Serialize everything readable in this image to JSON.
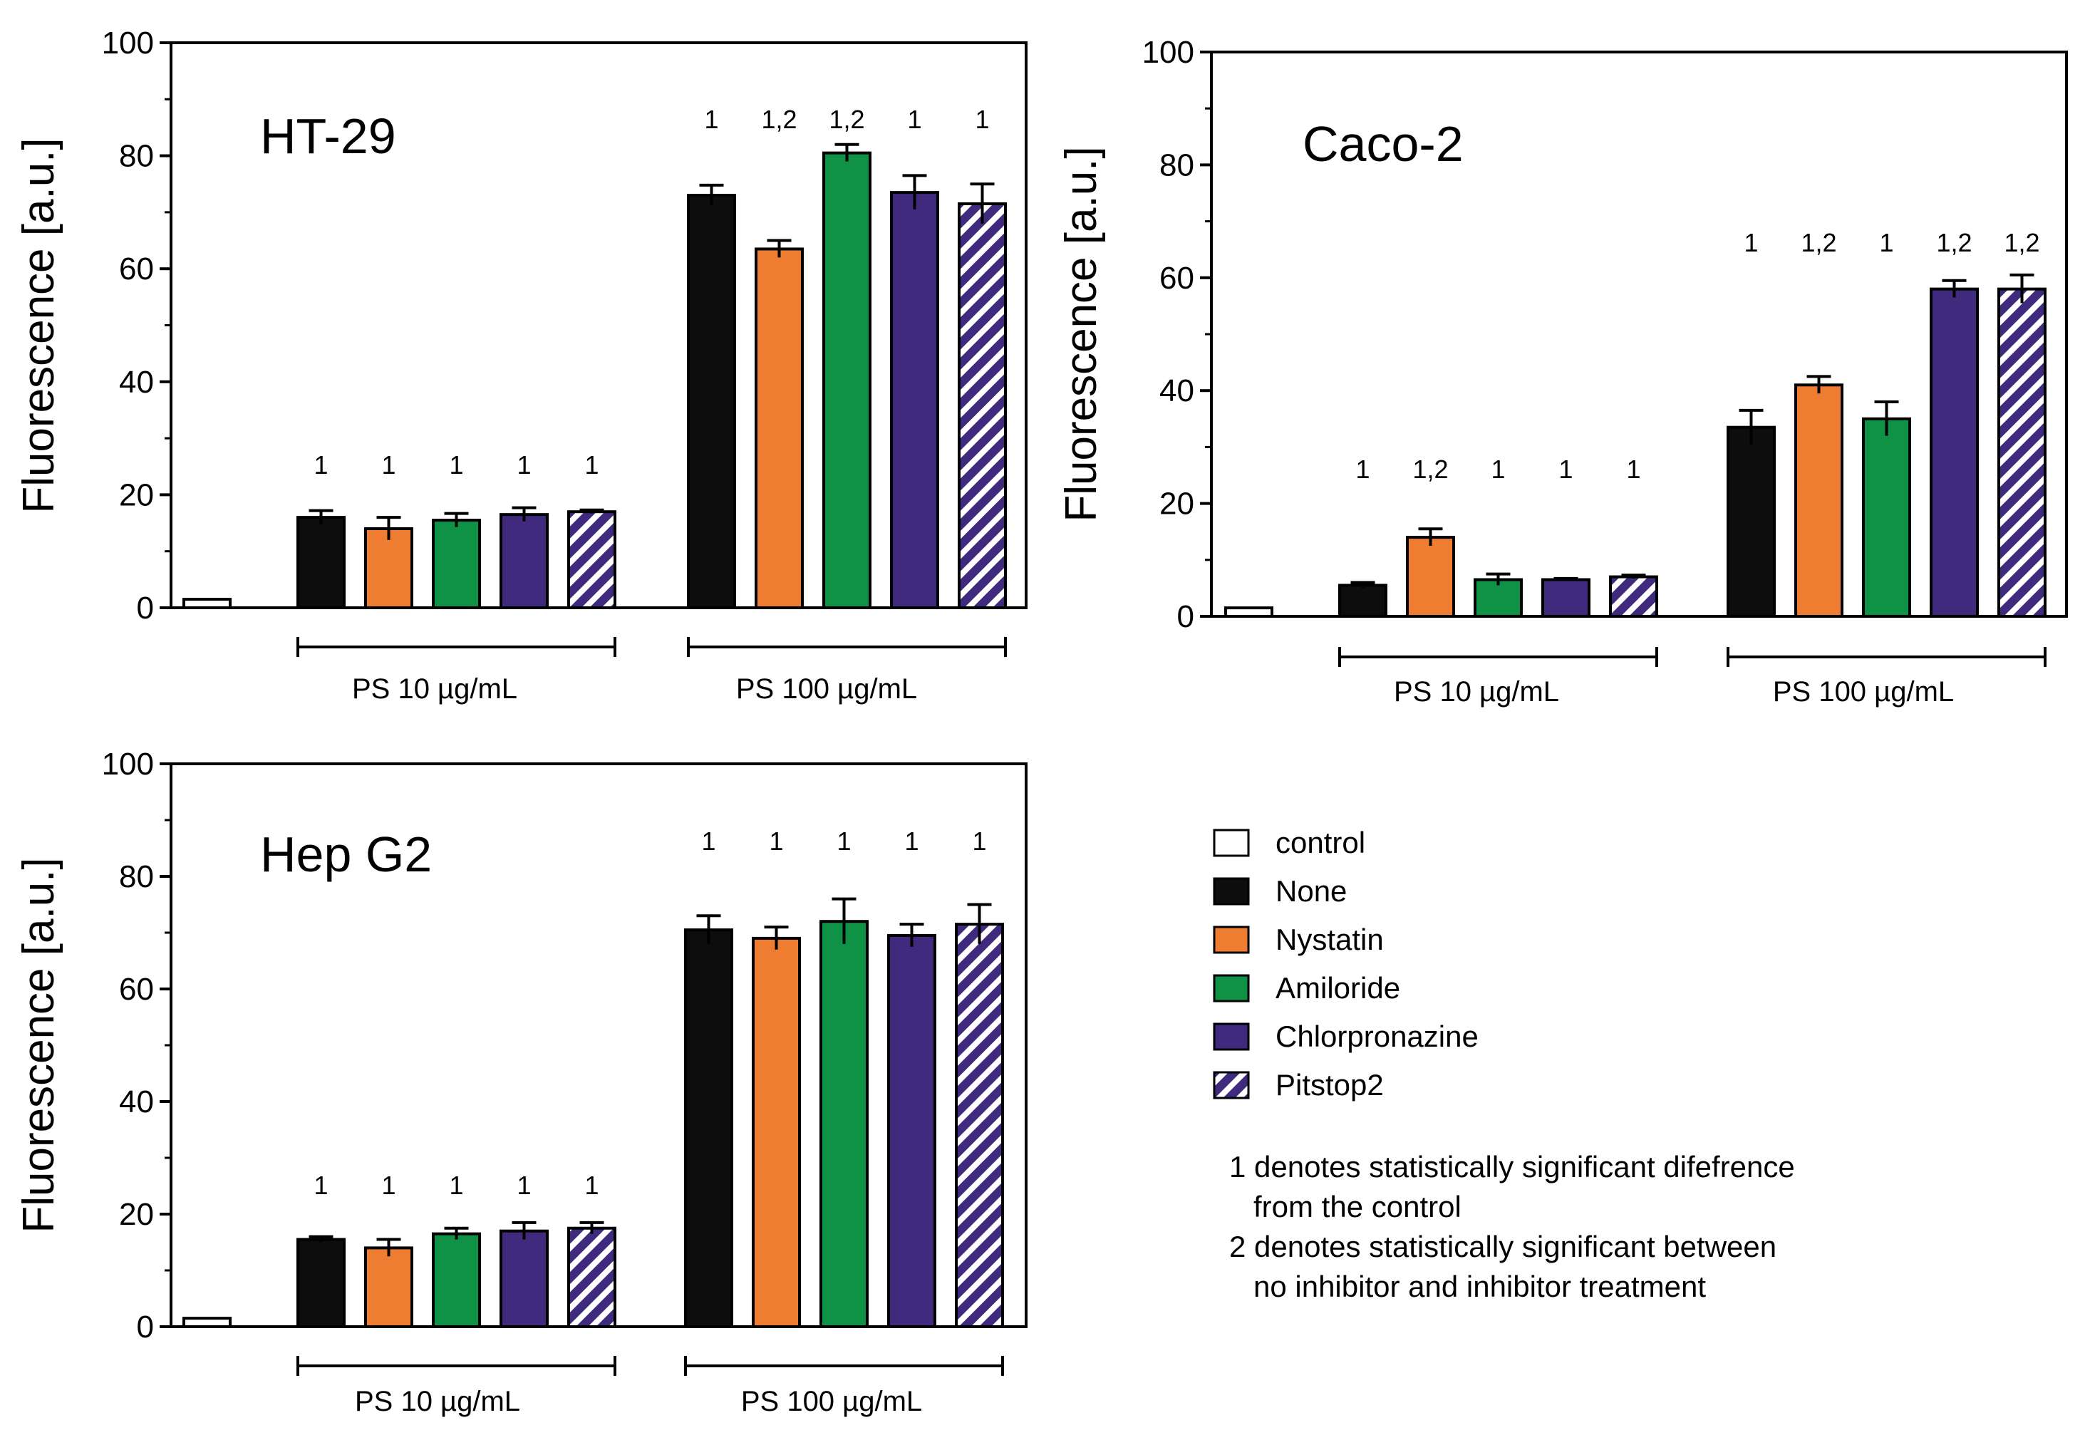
{
  "chart_data": [
    {
      "type": "bar",
      "title": "HT-29",
      "ylabel": "Fluorescence [a.u.]",
      "ylim": [
        0,
        100
      ],
      "yticks": [
        "0",
        "20",
        "40",
        "60",
        "80",
        "100"
      ],
      "control": {
        "value": 1.5,
        "error": 0.3
      },
      "groups": [
        {
          "label": "PS 10 µg/mL",
          "series": [
            "None",
            "Nystatin",
            "Amiloride",
            "Chlorpronazine",
            "Pitstop2"
          ],
          "values": [
            16,
            14,
            15.5,
            16.5,
            17
          ],
          "errors": [
            1.2,
            2,
            1.2,
            1.2,
            0.3
          ],
          "annotations": [
            "1",
            "1",
            "1",
            "1",
            "1"
          ]
        },
        {
          "label": "PS 100 µg/mL",
          "series": [
            "None",
            "Nystatin",
            "Amiloride",
            "Chlorpronazine",
            "Pitstop2"
          ],
          "values": [
            73,
            63.5,
            80.5,
            73.5,
            71.5
          ],
          "errors": [
            1.8,
            1.5,
            1.5,
            3,
            3.5
          ],
          "annotations": [
            "1",
            "1,2",
            "1,2",
            "1",
            "1"
          ]
        }
      ]
    },
    {
      "type": "bar",
      "title": "Caco-2",
      "ylabel": "Fluorescence [a.u.]",
      "ylim": [
        0,
        100
      ],
      "yticks": [
        "0",
        "20",
        "40",
        "60",
        "80",
        "100"
      ],
      "control": {
        "value": 1.5,
        "error": 0.3
      },
      "groups": [
        {
          "label": "PS 10 µg/mL",
          "series": [
            "None",
            "Nystatin",
            "Amiloride",
            "Chlorpronazine",
            "Pitstop2"
          ],
          "values": [
            5.5,
            14,
            6.5,
            6.5,
            7
          ],
          "errors": [
            0.5,
            1.5,
            1,
            0.2,
            0.3
          ],
          "annotations": [
            "1",
            "1,2",
            "1",
            "1",
            "1"
          ]
        },
        {
          "label": "PS 100 µg/mL",
          "series": [
            "None",
            "Nystatin",
            "Amiloride",
            "Chlorpronazine",
            "Pitstop2"
          ],
          "values": [
            33.5,
            41,
            35,
            58,
            58
          ],
          "errors": [
            3,
            1.5,
            3,
            1.5,
            2.5
          ],
          "annotations": [
            "1",
            "1,2",
            "1",
            "1,2",
            "1,2"
          ]
        }
      ]
    },
    {
      "type": "bar",
      "title": "Hep G2",
      "ylabel": "Fluorescence [a.u.]",
      "ylim": [
        0,
        100
      ],
      "yticks": [
        "0",
        "20",
        "40",
        "60",
        "80",
        "100"
      ],
      "control": {
        "value": 1.5,
        "error": 0.3
      },
      "groups": [
        {
          "label": "PS 10 µg/mL",
          "series": [
            "None",
            "Nystatin",
            "Amiloride",
            "Chlorpronazine",
            "Pitstop2"
          ],
          "values": [
            15.5,
            14,
            16.5,
            17,
            17.5
          ],
          "errors": [
            0.5,
            1.5,
            1,
            1.5,
            1
          ],
          "annotations": [
            "1",
            "1",
            "1",
            "1",
            "1"
          ]
        },
        {
          "label": "PS 100 µg/mL",
          "series": [
            "None",
            "Nystatin",
            "Amiloride",
            "Chlorpronazine",
            "Pitstop2"
          ],
          "values": [
            70.5,
            69,
            72,
            69.5,
            71.5
          ],
          "errors": [
            2.5,
            2,
            4,
            2,
            3.5
          ],
          "annotations": [
            "1",
            "1",
            "1",
            "1",
            "1"
          ]
        }
      ]
    }
  ],
  "legend": [
    {
      "label": "control",
      "color": "#ffffff",
      "pattern": "none"
    },
    {
      "label": "None",
      "color": "#0d0d0d",
      "pattern": "none"
    },
    {
      "label": "Nystatin",
      "color": "#ee7d31",
      "pattern": "none"
    },
    {
      "label": "Amiloride",
      "color": "#0f9146",
      "pattern": "none"
    },
    {
      "label": "Chlorpronazine",
      "color": "#3f2a7e",
      "pattern": "none"
    },
    {
      "label": "Pitstop2",
      "color": "#3f2a7e",
      "pattern": "hatch"
    }
  ],
  "notes": {
    "line1": "1 denotes statistically significant difefrence",
    "line2": "from the control",
    "line3": "2 denotes statistically significant between",
    "line4": "no inhibitor and inhibitor treatment"
  }
}
